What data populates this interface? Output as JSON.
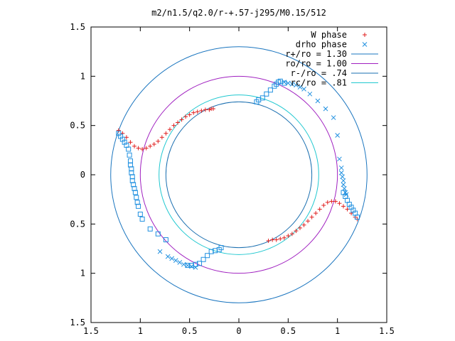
{
  "chart_data": {
    "type": "scatter",
    "title": "m2/n1.5/q2.0/r-+.57-j295/M0.15/512",
    "xlabel": "",
    "ylabel": "",
    "xlim": [
      -1.5,
      1.5
    ],
    "ylim": [
      -1.5,
      1.5
    ],
    "grid": false,
    "legend_position": "top-right",
    "x_tick_labels": [
      "1.5",
      "1",
      "0.5",
      "0",
      "0.5",
      "1",
      "1.5"
    ],
    "y_tick_labels": [
      "1.5",
      "1",
      "0.5",
      "0",
      "0.5",
      "1",
      "1.5"
    ],
    "ticks": [
      -1.5,
      -1,
      -0.5,
      0,
      0.5,
      1,
      1.5
    ],
    "circles": [
      {
        "name": "r+/ro = 1.30",
        "radius": 1.3,
        "color": "#1a75bf"
      },
      {
        "name": "ro/ro = 1.00",
        "radius": 1.0,
        "color": "#a020c0"
      },
      {
        "name": "r-/ro = .74",
        "radius": 0.74,
        "color": "#1a6fb0"
      },
      {
        "name": "rc/ro = .81",
        "radius": 0.81,
        "color": "#20c8d0"
      }
    ],
    "series": [
      {
        "name": "W phase",
        "marker": "+",
        "color": "#e02020",
        "x": [
          -1.22,
          -1.18,
          -1.14,
          -1.1,
          -1.06,
          -1.02,
          -0.98,
          -0.94,
          -0.9,
          -0.86,
          -0.82,
          -0.78,
          -0.74,
          -0.7,
          -0.66,
          -0.62,
          -0.58,
          -0.54,
          -0.5,
          -0.46,
          -0.42,
          -0.38,
          -0.34,
          -0.3,
          -0.28,
          -0.26,
          0.3,
          0.34,
          0.38,
          0.42,
          0.46,
          0.5,
          0.54,
          0.58,
          0.62,
          0.66,
          0.7,
          0.74,
          0.78,
          0.82,
          0.86,
          0.9,
          0.94,
          0.98,
          1.02,
          1.06,
          1.1,
          1.14,
          1.18,
          1.2
        ],
        "y": [
          0.45,
          0.42,
          0.38,
          0.33,
          0.29,
          0.27,
          0.26,
          0.27,
          0.29,
          0.31,
          0.34,
          0.38,
          0.42,
          0.46,
          0.5,
          0.53,
          0.56,
          0.59,
          0.61,
          0.63,
          0.64,
          0.65,
          0.66,
          0.66,
          0.67,
          0.67,
          -0.67,
          -0.66,
          -0.66,
          -0.65,
          -0.64,
          -0.62,
          -0.6,
          -0.57,
          -0.54,
          -0.51,
          -0.47,
          -0.43,
          -0.39,
          -0.35,
          -0.31,
          -0.28,
          -0.27,
          -0.27,
          -0.29,
          -0.32,
          -0.35,
          -0.39,
          -0.43,
          -0.45
        ]
      },
      {
        "name": "drho phase",
        "marker": "x",
        "color": "#2090e0",
        "x": [
          0.46,
          0.5,
          0.54,
          0.58,
          0.62,
          0.66,
          0.72,
          0.8,
          0.88,
          0.96,
          1.0,
          1.02,
          1.04,
          1.04,
          1.05,
          1.06,
          1.06,
          1.07,
          1.08,
          1.09,
          -0.44,
          -0.48,
          -0.52,
          -0.56,
          -0.6,
          -0.64,
          -0.68,
          -0.72,
          -0.8
        ],
        "y": [
          0.94,
          0.93,
          0.92,
          0.91,
          0.89,
          0.87,
          0.82,
          0.75,
          0.67,
          0.58,
          0.4,
          0.16,
          0.07,
          0.02,
          -0.02,
          -0.06,
          -0.1,
          -0.14,
          -0.18,
          -0.2,
          -0.94,
          -0.93,
          -0.92,
          -0.91,
          -0.89,
          -0.87,
          -0.85,
          -0.83,
          -0.78
        ]
      },
      {
        "name": "",
        "marker": "square",
        "color": "#2090e0",
        "x": [
          -1.22,
          -1.2,
          -1.18,
          -1.16,
          -1.14,
          -1.12,
          -1.11,
          -1.1,
          -1.1,
          -1.09,
          -1.09,
          -1.08,
          -1.08,
          -1.07,
          -1.06,
          -1.05,
          -1.04,
          -1.03,
          -1.02,
          -1.0,
          -0.98,
          -0.9,
          -0.82,
          -0.74,
          -0.52,
          -0.48,
          -0.44,
          -0.4,
          -0.36,
          -0.32,
          -0.28,
          -0.24,
          -0.2,
          -0.18,
          0.18,
          0.2,
          0.24,
          0.28,
          0.32,
          0.36,
          0.38,
          0.4,
          0.42,
          0.46,
          1.06,
          1.08,
          1.1,
          1.12,
          1.14,
          1.16,
          1.18,
          1.2
        ],
        "y": [
          0.42,
          0.39,
          0.36,
          0.33,
          0.3,
          0.26,
          0.2,
          0.14,
          0.1,
          0.06,
          0.02,
          -0.02,
          -0.06,
          -0.1,
          -0.14,
          -0.18,
          -0.23,
          -0.28,
          -0.32,
          -0.4,
          -0.45,
          -0.55,
          -0.6,
          -0.66,
          -0.92,
          -0.92,
          -0.91,
          -0.9,
          -0.86,
          -0.82,
          -0.78,
          -0.77,
          -0.76,
          -0.74,
          0.74,
          0.76,
          0.78,
          0.82,
          0.86,
          0.9,
          0.92,
          0.94,
          0.95,
          0.93,
          -0.18,
          -0.22,
          -0.26,
          -0.3,
          -0.33,
          -0.36,
          -0.39,
          -0.43
        ]
      }
    ],
    "legend": [
      {
        "label": "W phase",
        "kind": "+",
        "color": "#e02020"
      },
      {
        "label": "drho phase",
        "kind": "x",
        "color": "#2090e0"
      },
      {
        "label": "r+/ro = 1.30",
        "kind": "line",
        "color": "#1a75bf"
      },
      {
        "label": "ro/ro = 1.00",
        "kind": "line",
        "color": "#a020c0"
      },
      {
        "label": "r-/ro = .74",
        "kind": "line",
        "color": "#1a6fb0"
      },
      {
        "label": "rc/ro = .81",
        "kind": "line",
        "color": "#20c8d0"
      }
    ]
  }
}
